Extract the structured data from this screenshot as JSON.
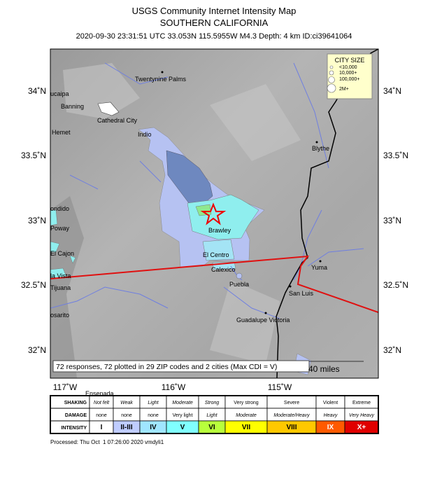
{
  "header": {
    "title": "USGS Community Internet Intensity Map",
    "subtitle": "SOUTHERN CALIFORNIA",
    "event": "2020-09-30 23:31:51 UTC 33.053N 115.5955W M4.3 Depth: 4 km ID:ci39641064"
  },
  "map": {
    "lat_labels": [
      "34˚N",
      "33.5˚N",
      "33˚N",
      "32.5˚N",
      "32˚N"
    ],
    "lon_labels": [
      "117˚W",
      "116˚W",
      "115˚W"
    ],
    "cities": [
      "Twentynine Palms",
      "ucaipa",
      "Banning",
      "Cathedral City",
      "Indio",
      "Hemet",
      "Blythe",
      "ondido",
      "Poway",
      "El Cajon",
      "Brawley",
      "El Centro",
      "Calexico",
      "la Vista",
      "Yuma",
      "Tijuana",
      "Puebla",
      "San Luis",
      "osarito",
      "Guadalupe Victoria",
      "Ensenada"
    ],
    "legend": {
      "title": "CITY SIZE",
      "items": [
        "<10,000",
        "10,000+",
        "100,000+",
        "2M+"
      ]
    },
    "note": "72 responses, 72 plotted in 29 ZIP codes and 2 cities (Max CDI = V)",
    "scale": "40 miles"
  },
  "table": {
    "headers": [
      "SHAKING",
      "DAMAGE",
      "INTENSITY"
    ],
    "shaking": [
      "Not felt",
      "Weak",
      "Light",
      "Moderate",
      "Strong",
      "Very strong",
      "Severe",
      "Violent",
      "Extreme"
    ],
    "damage": [
      "none",
      "none",
      "none",
      "Very light",
      "Light",
      "Moderate",
      "Moderate/Heavy",
      "Heavy",
      "Very Heavy"
    ],
    "intensity": [
      "I",
      "II-III",
      "IV",
      "V",
      "VI",
      "VII",
      "VIII",
      "IX",
      "X+"
    ]
  },
  "footer": "Processed: Thu Oct  1 07:26:00 2020 vmdyli1"
}
